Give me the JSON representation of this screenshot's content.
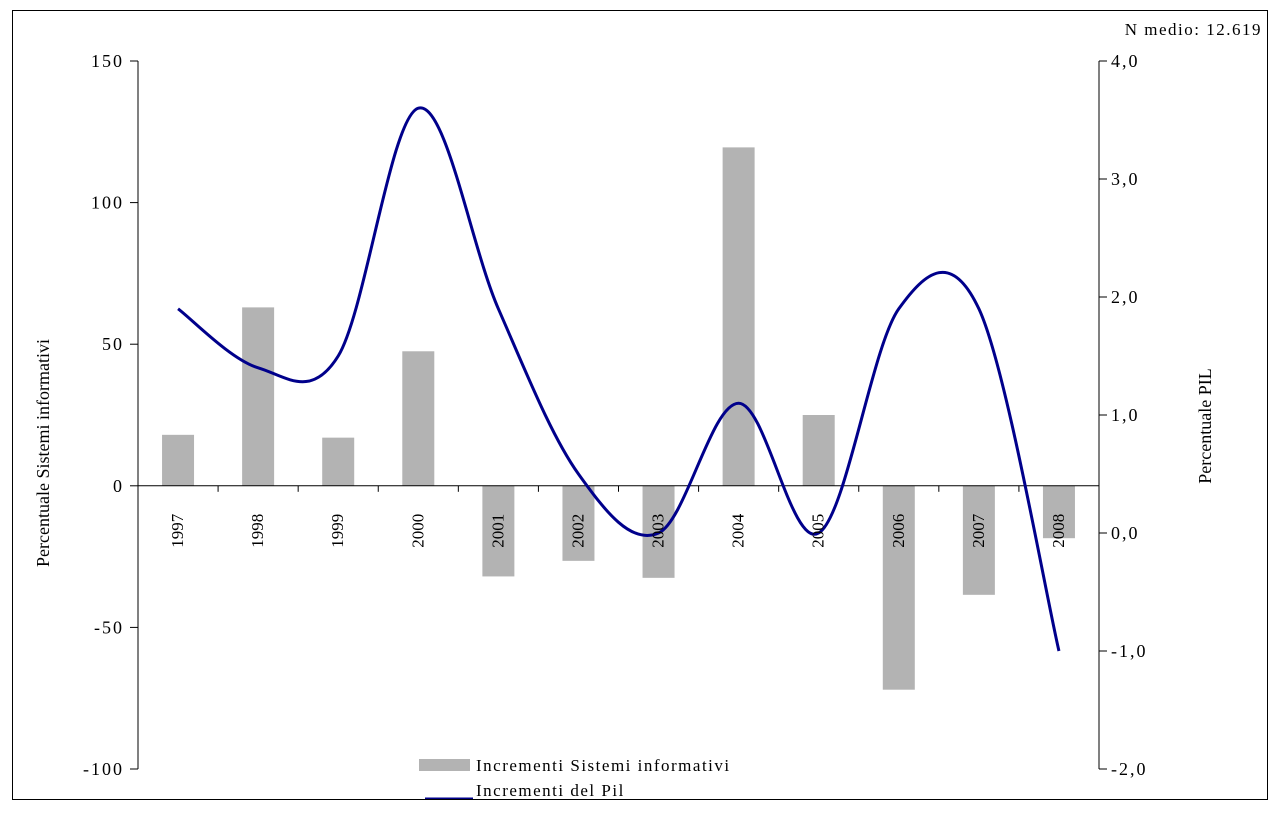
{
  "chart_data": {
    "type": "bar+line",
    "note": "N medio: 12.619",
    "categories": [
      "1997",
      "1998",
      "1999",
      "2000",
      "2001",
      "2002",
      "2003",
      "2004",
      "2005",
      "2006",
      "2007",
      "2008"
    ],
    "series": [
      {
        "name": "Incrementi Sistemi informativi",
        "type": "bar",
        "axis": "left",
        "color": "#b3b3b3",
        "values": [
          18,
          63,
          17,
          47.5,
          -32,
          -26.5,
          -32.5,
          119.5,
          25,
          -72,
          -38.5,
          -18.5
        ]
      },
      {
        "name": "Incrementi del Pil",
        "type": "line",
        "axis": "right",
        "color": "#00008b",
        "values": [
          1.9,
          1.4,
          1.5,
          3.6,
          1.9,
          0.5,
          0.0,
          1.1,
          0.0,
          1.9,
          1.9,
          -1.0
        ]
      }
    ],
    "y_left": {
      "label": "Percentuale Sistemi informativi",
      "range": [
        -100,
        150
      ],
      "ticks": [
        -100,
        -50,
        0,
        50,
        100,
        150
      ],
      "tick_labels": [
        "-100",
        "-50",
        "0",
        "50",
        "100",
        "150"
      ]
    },
    "y_right": {
      "label": "Percentuale PIL",
      "range": [
        -2,
        4
      ],
      "ticks": [
        -2,
        -1,
        0,
        1,
        2,
        3,
        4
      ],
      "tick_labels": [
        "-2,0",
        "-1,0",
        "0,0",
        "1,0",
        "2,0",
        "3,0",
        "4,0"
      ]
    },
    "grid": false,
    "legend_position": "bottom-center"
  }
}
